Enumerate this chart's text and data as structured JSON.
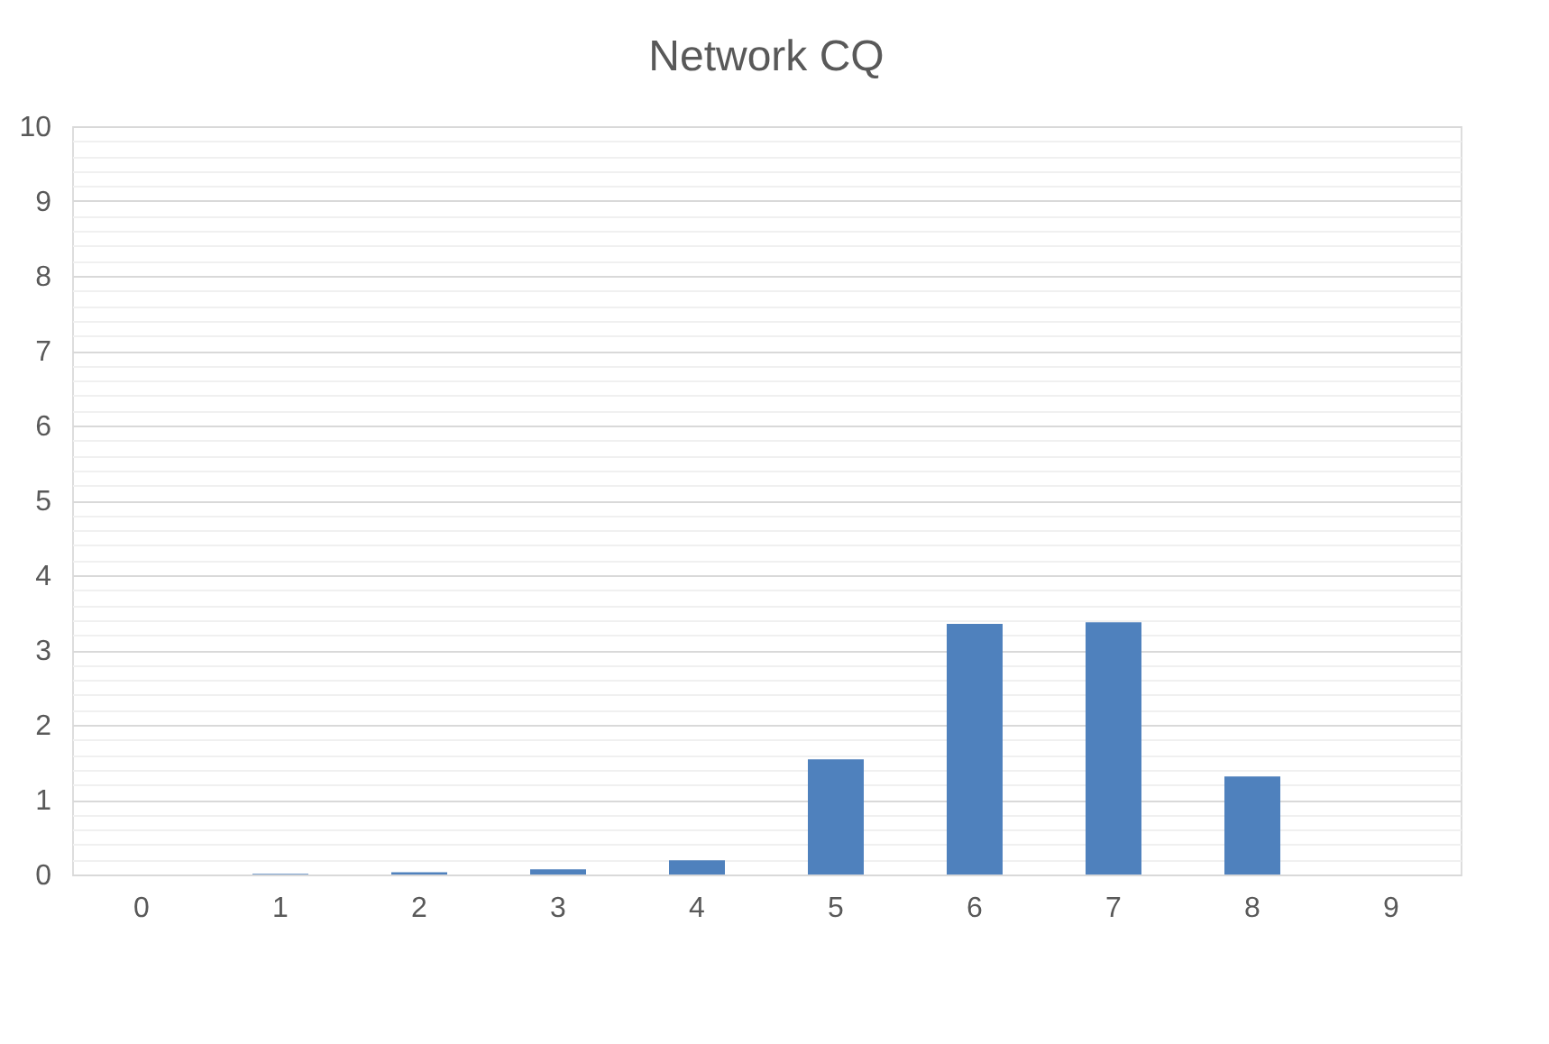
{
  "chart_data": {
    "type": "bar",
    "title": "Network CQ",
    "categories": [
      "0",
      "1",
      "2",
      "3",
      "4",
      "5",
      "6",
      "7",
      "8",
      "9"
    ],
    "values": [
      0,
      0.01,
      0.03,
      0.07,
      0.19,
      1.54,
      3.35,
      3.37,
      1.31,
      0
    ],
    "color": "#4f81bd",
    "ylim": [
      0,
      10
    ],
    "yticks": [
      0,
      {
        "value": 0.2,
        "label": null
      },
      {
        "value": 0.4,
        "label": null
      },
      {
        "value": 0.6,
        "label": null
      },
      {
        "value": 0.8,
        "label": null
      },
      1,
      {
        "value": 1.2,
        "label": null
      },
      {
        "value": 1.4,
        "label": null
      },
      {
        "value": 1.6,
        "label": null
      },
      {
        "value": 1.8,
        "label": null
      },
      2,
      {
        "value": 2.2,
        "label": null
      },
      {
        "value": 2.4,
        "label": null
      },
      {
        "value": 2.6,
        "label": null
      },
      {
        "value": 2.8,
        "label": null
      },
      3,
      {
        "value": 3.2,
        "label": null
      },
      {
        "value": 3.4,
        "label": null
      },
      {
        "value": 3.6,
        "label": null
      },
      {
        "value": 3.8,
        "label": null
      },
      4,
      {
        "value": 4.2,
        "label": null
      },
      {
        "value": 4.4,
        "label": null
      },
      {
        "value": 4.6,
        "label": null
      },
      {
        "value": 4.8,
        "label": null
      },
      5,
      {
        "value": 5.2,
        "label": null
      },
      {
        "value": 5.4,
        "label": null
      },
      {
        "value": 5.6,
        "label": null
      },
      {
        "value": 5.8,
        "label": null
      },
      6,
      {
        "value": 6.2,
        "label": null
      },
      {
        "value": 6.4,
        "label": null
      },
      {
        "value": 6.6,
        "label": null
      },
      {
        "value": 6.8,
        "label": null
      },
      7,
      {
        "value": 7.2,
        "label": null
      },
      {
        "value": 7.4,
        "label": null
      },
      {
        "value": 7.6,
        "label": null
      },
      {
        "value": 7.8,
        "label": null
      },
      8,
      {
        "value": 8.2,
        "label": null
      },
      {
        "value": 8.4,
        "label": null
      },
      {
        "value": 8.6,
        "label": null
      },
      {
        "value": 8.8,
        "label": null
      },
      9,
      {
        "value": 9.2,
        "label": null
      },
      {
        "value": 9.4,
        "label": null
      },
      {
        "value": 9.6,
        "label": null
      },
      {
        "value": 9.8,
        "label": null
      },
      10
    ],
    "grid": true
  }
}
